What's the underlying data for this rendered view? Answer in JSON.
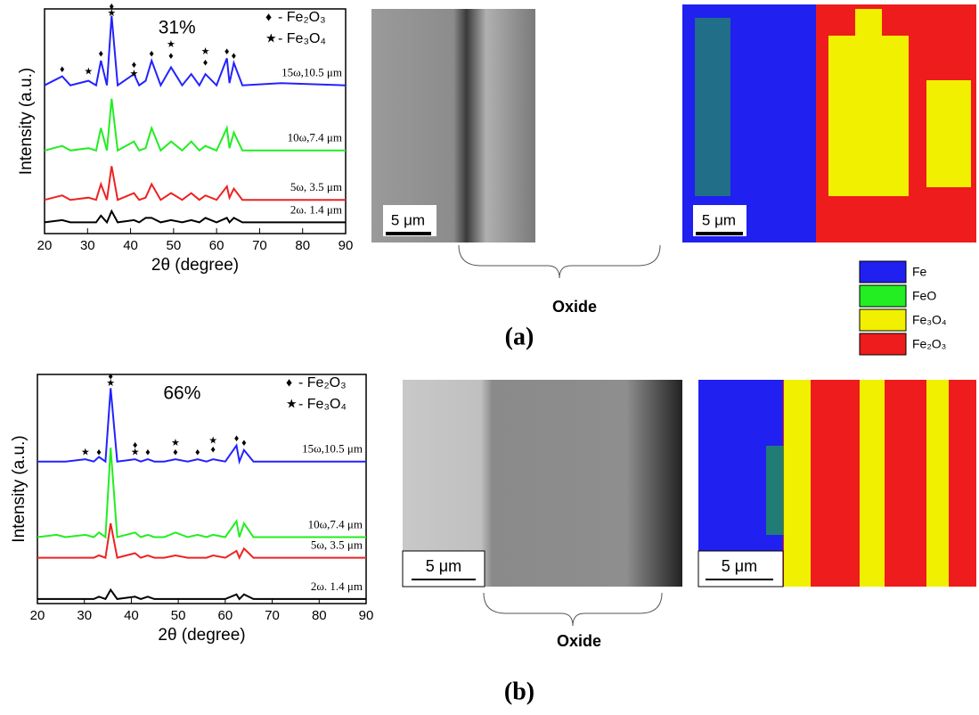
{
  "chart_data": [
    {
      "type": "line",
      "annotation": "31%",
      "xlabel": "2θ (degree)",
      "ylabel": "Intensity (a.u.)",
      "x": [
        20,
        24.1,
        26,
        30.2,
        32,
        33.1,
        34.5,
        35.6,
        37,
        40.8,
        42,
        43.5,
        44.9,
        47,
        49.4,
        52,
        54.1,
        56,
        57.4,
        60,
        62.4,
        63,
        64,
        66,
        75,
        90
      ],
      "xlim": [
        20,
        90
      ],
      "xticks": [
        20,
        30,
        40,
        50,
        60,
        70,
        80,
        90
      ],
      "ylim": [
        0,
        100
      ],
      "series": [
        {
          "name": "15ω,10.5 μm",
          "color": "#2222ff",
          "values": [
            66,
            70,
            66,
            68,
            66,
            77,
            66,
            97,
            66,
            71,
            66,
            68,
            77,
            66,
            74,
            66,
            71,
            66,
            71,
            66,
            78,
            67,
            76,
            66,
            67,
            66
          ]
        },
        {
          "name": "10ω,7.4 μm",
          "color": "#22ee22",
          "values": [
            37,
            39,
            37,
            38,
            37,
            47,
            37,
            60,
            37,
            41,
            37,
            38,
            47,
            37,
            41,
            37,
            41,
            37,
            39,
            37,
            47,
            38,
            45,
            37,
            37,
            37
          ]
        },
        {
          "name": "5ω, 3.5 μm",
          "color": "#ee2222",
          "values": [
            15,
            17,
            15,
            16,
            15,
            22,
            15,
            30,
            15,
            18,
            15,
            16,
            22,
            15,
            18,
            15,
            18,
            15,
            17,
            15,
            21,
            16,
            20,
            15,
            15,
            15
          ]
        },
        {
          "name": "2ω. 1.4 μm",
          "color": "#000000",
          "values": [
            5,
            6,
            5,
            5,
            5,
            8,
            5,
            10,
            5,
            6,
            5,
            7,
            7,
            5,
            6,
            5,
            6,
            5,
            7,
            5,
            7,
            5,
            7,
            5,
            5,
            5
          ]
        }
      ],
      "phase_symbols": [
        {
          "symbol": "♦",
          "label": "- Fe₂O₃"
        },
        {
          "symbol": "★",
          "label": "- Fe₃O₄"
        }
      ],
      "markers": [
        {
          "x": 24.1,
          "y": 73,
          "symbol": "♦"
        },
        {
          "x": 30.2,
          "y": 72,
          "symbol": "★"
        },
        {
          "x": 33.1,
          "y": 80,
          "symbol": "♦"
        },
        {
          "x": 35.6,
          "y": 101,
          "symbol": "♦"
        },
        {
          "x": 35.6,
          "y": 98,
          "symbol": "★"
        },
        {
          "x": 40.8,
          "y": 75,
          "symbol": "♦"
        },
        {
          "x": 40.8,
          "y": 71,
          "symbol": "★"
        },
        {
          "x": 44.9,
          "y": 80,
          "symbol": "♦"
        },
        {
          "x": 49.4,
          "y": 84,
          "symbol": "★"
        },
        {
          "x": 49.4,
          "y": 79,
          "symbol": "♦"
        },
        {
          "x": 57.4,
          "y": 81,
          "symbol": "★"
        },
        {
          "x": 57.4,
          "y": 76,
          "symbol": "♦"
        },
        {
          "x": 62.4,
          "y": 81,
          "symbol": "♦"
        },
        {
          "x": 64,
          "y": 79,
          "symbol": "♦"
        }
      ]
    },
    {
      "type": "line",
      "annotation": "66%",
      "xlabel": "2θ (degree)",
      "ylabel": "Intensity (a.u.)",
      "x": [
        20,
        24.1,
        26,
        30.2,
        32,
        33.1,
        34.5,
        35.6,
        37,
        40.8,
        42,
        43.5,
        44.9,
        47,
        49.4,
        52,
        54.1,
        56,
        57.4,
        60,
        62.4,
        63,
        64,
        66,
        75,
        90
      ],
      "xlim": [
        20,
        90
      ],
      "xticks": [
        20,
        30,
        40,
        50,
        60,
        70,
        80,
        90
      ],
      "ylim": [
        0,
        100
      ],
      "series": [
        {
          "name": "15ω,10.5 μm",
          "color": "#2222ff",
          "values": [
            62,
            62,
            62,
            63,
            62,
            64,
            62,
            94,
            62,
            63,
            62,
            63,
            62,
            62,
            63,
            62,
            63,
            62,
            63,
            62,
            69,
            62,
            67,
            62,
            62,
            62
          ]
        },
        {
          "name": "10ω,7.4 μm",
          "color": "#22ee22",
          "values": [
            29,
            30,
            29,
            30,
            29,
            31,
            29,
            68,
            29,
            31,
            29,
            30,
            29,
            29,
            31,
            29,
            30,
            29,
            30,
            29,
            36,
            29,
            35,
            29,
            29,
            29
          ]
        },
        {
          "name": "5ω, 3.5 μm",
          "color": "#ee2222",
          "values": [
            20,
            20,
            20,
            20,
            20,
            21,
            20,
            35,
            20,
            22,
            20,
            21,
            20,
            20,
            21,
            20,
            20,
            20,
            21,
            20,
            23,
            20,
            24,
            20,
            20,
            20
          ]
        },
        {
          "name": "2ω. 1.4 μm",
          "color": "#000000",
          "values": [
            2,
            2,
            2,
            2,
            2,
            3,
            2,
            6,
            2,
            3,
            2,
            3,
            2,
            2,
            2,
            2,
            2,
            2,
            2,
            2,
            4,
            2,
            4,
            2,
            2,
            2
          ]
        }
      ],
      "phase_symbols": [
        {
          "symbol": "♦",
          "label": "- Fe₂O₃"
        },
        {
          "symbol": "★",
          "label": "- Fe₃O₄"
        }
      ],
      "markers": [
        {
          "x": 35.6,
          "y": 99,
          "symbol": "♦"
        },
        {
          "x": 35.6,
          "y": 96,
          "symbol": "★"
        },
        {
          "x": 30.2,
          "y": 66,
          "symbol": "★"
        },
        {
          "x": 33.1,
          "y": 66,
          "symbol": "♦"
        },
        {
          "x": 40.8,
          "y": 69,
          "symbol": "♦"
        },
        {
          "x": 40.8,
          "y": 66,
          "symbol": "★"
        },
        {
          "x": 43.5,
          "y": 66,
          "symbol": "♦"
        },
        {
          "x": 49.4,
          "y": 70,
          "symbol": "★"
        },
        {
          "x": 49.4,
          "y": 66,
          "symbol": "♦"
        },
        {
          "x": 54.1,
          "y": 66,
          "symbol": "♦"
        },
        {
          "x": 57.4,
          "y": 71,
          "symbol": "★"
        },
        {
          "x": 57.4,
          "y": 67,
          "symbol": "♦"
        },
        {
          "x": 62.4,
          "y": 72,
          "symbol": "♦"
        },
        {
          "x": 64,
          "y": 70,
          "symbol": "♦"
        }
      ]
    }
  ],
  "figure": {
    "panels": [
      {
        "label": "(a)",
        "sem_scale": "5 μm",
        "ebsd_scale": "5 μm",
        "region": "Oxide"
      },
      {
        "label": "(b)",
        "sem_scale": "5 μm",
        "ebsd_scale": "5 μm",
        "region": "Oxide"
      }
    ],
    "phase_legend": [
      {
        "name": "Fe",
        "color": "#2020f0"
      },
      {
        "name": "FeO",
        "color": "#22ee22"
      },
      {
        "name": "Fe₃O₄",
        "color": "#f0f000"
      },
      {
        "name": "Fe₂O₃",
        "color": "#ee1c1c"
      }
    ]
  }
}
